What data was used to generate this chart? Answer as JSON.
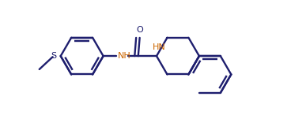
{
  "bg": "#ffffff",
  "lc": "#1e1e6e",
  "nc": "#cc6600",
  "lw": 1.7,
  "figsize": [
    3.87,
    1.46
  ],
  "dpi": 100,
  "xlim": [
    0.0,
    8.5
  ],
  "ylim": [
    0.3,
    4.2
  ]
}
